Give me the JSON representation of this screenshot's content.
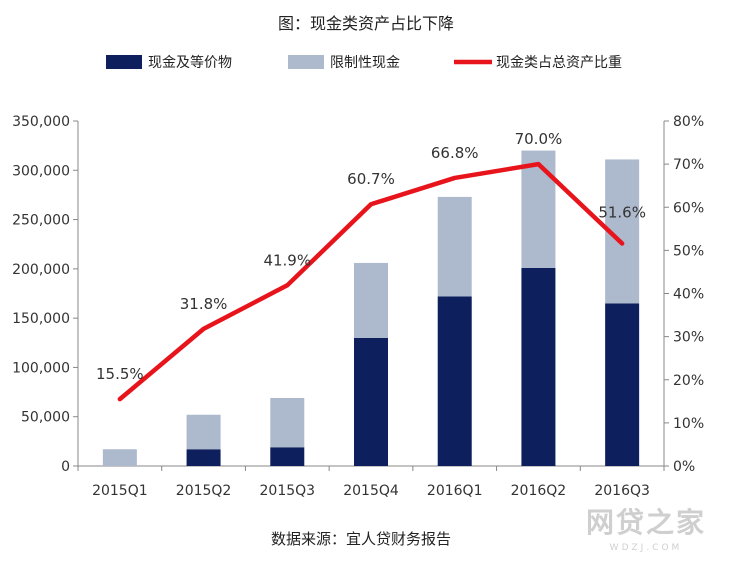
{
  "chart_data": {
    "type": "bar",
    "title": "图：现金类资产占比下降",
    "categories": [
      "2015Q1",
      "2015Q2",
      "2015Q3",
      "2015Q4",
      "2016Q1",
      "2016Q2",
      "2016Q3"
    ],
    "series": [
      {
        "name": "现金及等价物",
        "type": "bar",
        "stack": "total",
        "axis": "left",
        "color": "#0d1f5c",
        "values": [
          0,
          17000,
          19000,
          130000,
          172000,
          201000,
          165000
        ]
      },
      {
        "name": "限制性现金",
        "type": "bar",
        "stack": "total",
        "axis": "left",
        "color": "#adb9cc",
        "values": [
          17000,
          35000,
          50000,
          76000,
          101000,
          119000,
          146000
        ]
      },
      {
        "name": "现金类占总资产比重",
        "type": "line",
        "axis": "right",
        "color": "#e8141c",
        "values": [
          15.5,
          31.8,
          41.9,
          60.7,
          66.8,
          70.0,
          51.6
        ],
        "labels": [
          "15.5%",
          "31.8%",
          "41.9%",
          "60.7%",
          "66.8%",
          "70.0%",
          "51.6%"
        ]
      }
    ],
    "y_left": {
      "min": 0,
      "max": 350000,
      "step": 50000,
      "tick_labels": [
        "0",
        "50,000",
        "100,000",
        "150,000",
        "200,000",
        "250,000",
        "300,000",
        "350,000"
      ]
    },
    "y_right": {
      "min": 0,
      "max": 80,
      "step": 10,
      "tick_labels": [
        "0%",
        "10%",
        "20%",
        "30%",
        "40%",
        "50%",
        "60%",
        "70%",
        "80%"
      ]
    },
    "grid": false,
    "legend_position": "top",
    "source": "数据来源：宜人贷财务报告"
  },
  "watermark": {
    "main": "网贷之家",
    "sub": "WDZJ.COM"
  }
}
